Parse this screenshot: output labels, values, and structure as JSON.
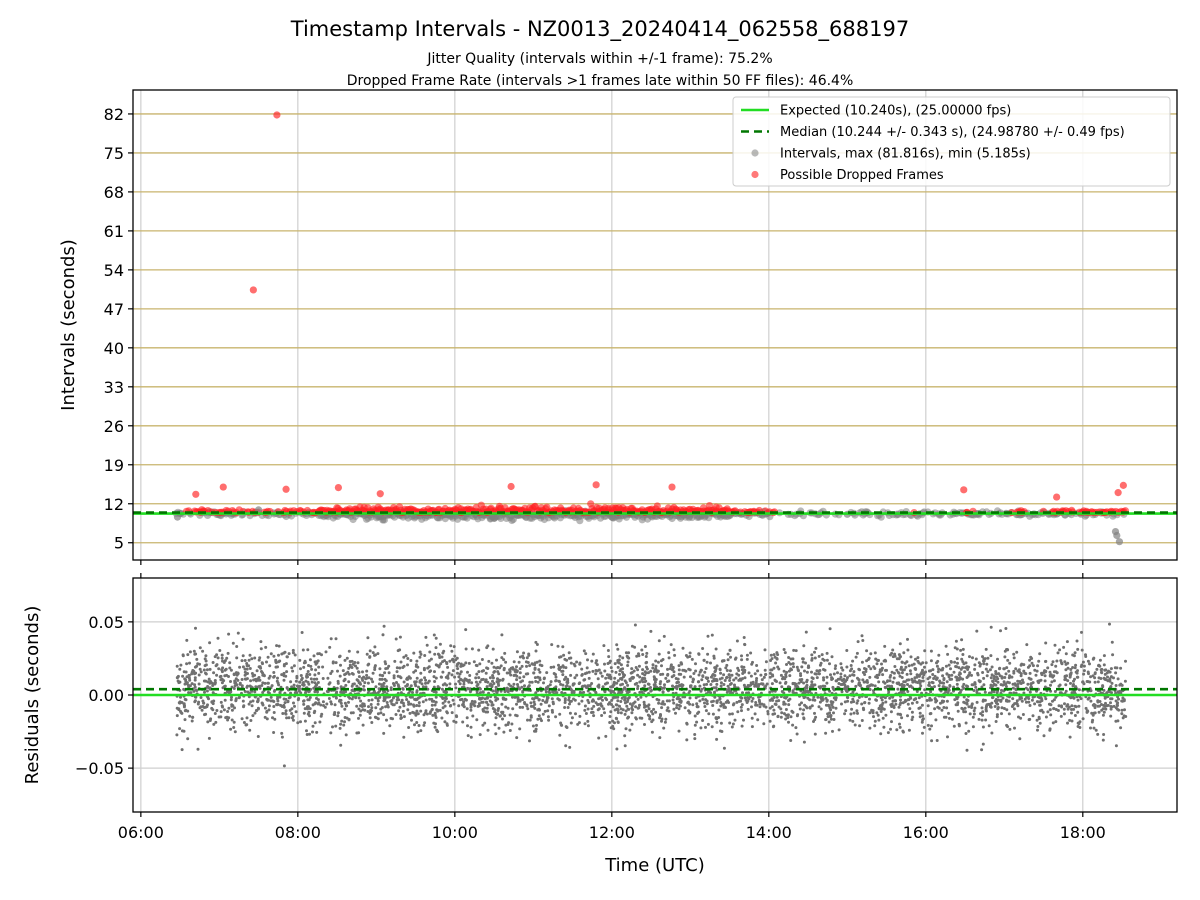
{
  "header": {
    "title": "Timestamp Intervals - NZ0013_20240414_062558_688197",
    "subtitle_1": "Jitter Quality (intervals within +/-1 frame): 75.2%",
    "subtitle_2": "Dropped Frame Rate (intervals >1 frames late within 50 FF files): 46.4%"
  },
  "colors": {
    "expected": "#22dd22",
    "median": "#007700",
    "intervals": "#808080",
    "dropped": "#ff2020",
    "hgrid_top": "#c8b46e",
    "grid": "#cfcfcf",
    "residuals": "#707070"
  },
  "chart_data": [
    {
      "type": "scatter",
      "ylabel": "Intervals (seconds)",
      "xlim": [
        "05:54",
        "19:12"
      ],
      "ylim": [
        1.9,
        86.3
      ],
      "y_ticks": [
        5,
        12,
        19,
        26,
        33,
        40,
        47,
        54,
        61,
        68,
        75,
        82
      ],
      "x_ticks": [
        "06:00",
        "08:00",
        "10:00",
        "12:00",
        "14:00",
        "16:00",
        "18:00"
      ],
      "grid": "on",
      "legend_position": "top-right",
      "legend": [
        "Expected (10.240s), (25.00000 fps)",
        "Median (10.244 +/- 0.343 s), (24.98780 +/- 0.49 fps)",
        "Intervals, max (81.816s), min (5.185s)",
        "Possible Dropped Frames"
      ],
      "expected_interval": 10.24,
      "median_interval": 10.244,
      "time_range": [
        "06:27",
        "18:33"
      ],
      "series": [
        {
          "name": "Intervals, max (81.816s), min (5.185s)",
          "points": [
            [
              "06:28",
              9.6
            ],
            [
              "07:30",
              10.9
            ],
            [
              "09:05",
              9.1
            ],
            [
              "10:30",
              9.4
            ],
            [
              "12:00",
              9.6
            ],
            [
              "13:30",
              10.0
            ],
            [
              "15:00",
              10.1
            ],
            [
              "16:40",
              10.2
            ],
            [
              "18:25",
              7.0
            ],
            [
              "18:26",
              6.3
            ],
            [
              "18:28",
              5.185
            ]
          ]
        },
        {
          "name": "Possible Dropped Frames",
          "points": [
            [
              "07:44",
              81.816
            ],
            [
              "07:26",
              50.4
            ],
            [
              "06:42",
              13.7
            ],
            [
              "07:03",
              15.0
            ],
            [
              "07:51",
              14.6
            ],
            [
              "08:31",
              14.9
            ],
            [
              "09:03",
              13.8
            ],
            [
              "10:43",
              15.1
            ],
            [
              "11:48",
              15.4
            ],
            [
              "12:46",
              15.0
            ],
            [
              "16:29",
              14.5
            ],
            [
              "17:40",
              13.2
            ],
            [
              "18:27",
              14.0
            ],
            [
              "18:31",
              15.3
            ]
          ]
        }
      ]
    },
    {
      "type": "scatter",
      "xlabel": "Time (UTC)",
      "ylabel": "Residuals (seconds)",
      "xlim": [
        "05:54",
        "19:12"
      ],
      "ylim": [
        -0.08,
        0.08
      ],
      "y_ticks": [
        "−0.05",
        "0.00",
        "0.05"
      ],
      "x_ticks": [
        "06:00",
        "08:00",
        "10:00",
        "12:00",
        "14:00",
        "16:00",
        "18:00"
      ],
      "grid": "on",
      "expected_residual": 0.0,
      "median_residual": 0.004,
      "residual_spread": 0.02,
      "point_count": 4200
    }
  ]
}
